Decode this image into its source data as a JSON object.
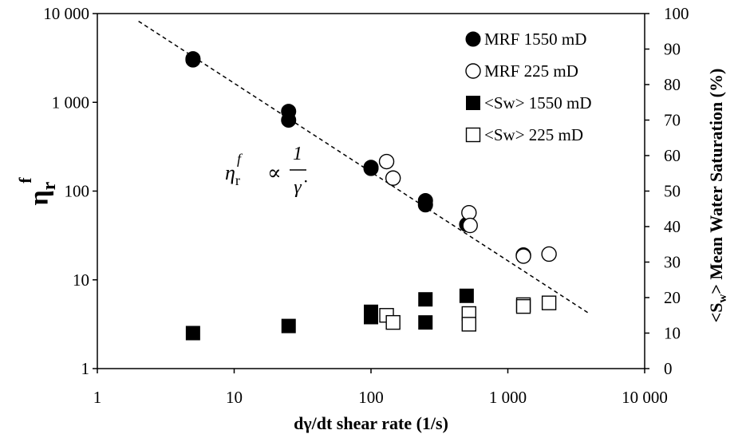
{
  "chart_data": {
    "type": "scatter",
    "title": "",
    "xlabel": "dγ/dt shear rate (1/s)",
    "ylabel_left": {
      "base": "η",
      "sub": "r",
      "sup": "f"
    },
    "ylabel_right": {
      "pre": "<S",
      "sub": "w",
      "post": "> Mean Water Saturation (%)"
    },
    "x_scale": "log",
    "xlim": [
      1,
      10000
    ],
    "x_ticks": [
      1,
      10,
      100,
      1000,
      10000
    ],
    "x_tick_labels": [
      "1",
      "10",
      "100",
      "1 000",
      "10 000"
    ],
    "y_left_scale": "log",
    "y_left_lim": [
      1,
      10000
    ],
    "y_left_ticks": [
      1,
      10,
      100,
      1000,
      10000
    ],
    "y_left_tick_labels": [
      "1",
      "10",
      "100",
      "1 000",
      "10 000"
    ],
    "y_right_scale": "linear",
    "y_right_lim": [
      0,
      100
    ],
    "y_right_ticks": [
      0,
      10,
      20,
      30,
      40,
      50,
      60,
      70,
      80,
      90,
      100
    ],
    "y_right_tick_labels": [
      "0",
      "10",
      "20",
      "30",
      "40",
      "50",
      "60",
      "70",
      "80",
      "90",
      "100"
    ],
    "grid": false,
    "legend_position": "top-right",
    "series": [
      {
        "name": "MRF 1550 mD",
        "axis": "left",
        "marker": "filled-circle",
        "points": [
          [
            5,
            3000
          ],
          [
            5,
            3100
          ],
          [
            25,
            790
          ],
          [
            25,
            630
          ],
          [
            100,
            185
          ],
          [
            100,
            180
          ],
          [
            250,
            78
          ],
          [
            250,
            70
          ],
          [
            500,
            42
          ]
        ]
      },
      {
        "name": "MRF 225 mD",
        "axis": "left",
        "marker": "open-circle",
        "points": [
          [
            130,
            215
          ],
          [
            145,
            140
          ],
          [
            520,
            57
          ],
          [
            530,
            41
          ],
          [
            1300,
            19
          ],
          [
            1300,
            18.5
          ],
          [
            2000,
            19.5
          ]
        ]
      },
      {
        "name": "<Sw> 1550 mD",
        "axis": "right",
        "marker": "filled-square",
        "points": [
          [
            5,
            10
          ],
          [
            25,
            12
          ],
          [
            100,
            16
          ],
          [
            100,
            14.5
          ],
          [
            250,
            19.5
          ],
          [
            250,
            13
          ],
          [
            500,
            20.5
          ]
        ]
      },
      {
        "name": "<Sw> 225 mD",
        "axis": "right",
        "marker": "open-square",
        "points": [
          [
            130,
            15
          ],
          [
            145,
            13
          ],
          [
            520,
            15.5
          ],
          [
            520,
            12.5
          ],
          [
            1300,
            18
          ],
          [
            1300,
            17.5
          ],
          [
            2000,
            18.5
          ]
        ]
      }
    ],
    "trendline": {
      "style": "dashed",
      "axis": "left",
      "points": [
        [
          2,
          8200
        ],
        [
          4000,
          4.1
        ]
      ]
    },
    "annotation": {
      "lhs": "η",
      "lhs_sub": "r",
      "lhs_sup": "f",
      "relation": "∝",
      "numerator": "1",
      "denominator": "γ̇"
    }
  }
}
